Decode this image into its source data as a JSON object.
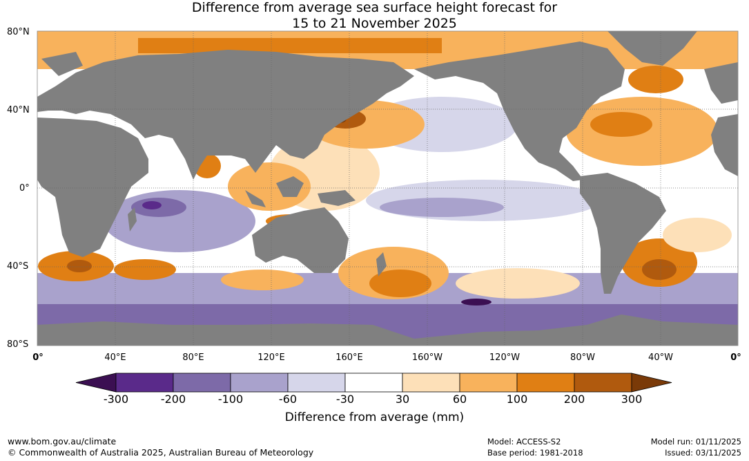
{
  "title_line1": "Difference from average sea surface height forecast for",
  "title_line2": "15 to 21 November 2025",
  "lat_labels": [
    "80°N",
    "40°N",
    "0°",
    "40°S",
    "80°S"
  ],
  "lon_labels": [
    "0°",
    "40°E",
    "80°E",
    "120°E",
    "160°E",
    "160°W",
    "120°W",
    "80°W",
    "40°W",
    "0°"
  ],
  "colorbar": {
    "title": "Difference from average (mm)",
    "ticks": [
      "-300",
      "-200",
      "-100",
      "-60",
      "-30",
      "30",
      "60",
      "100",
      "200",
      "300"
    ],
    "colors": [
      "#3b0f52",
      "#5a2a8a",
      "#7d6aa8",
      "#a9a2cc",
      "#d6d6ea",
      "#ffffff",
      "#fde0b8",
      "#f8b25c",
      "#e07f14",
      "#b05a0e",
      "#7a3a08"
    ]
  },
  "footer": {
    "website": "www.bom.gov.au/climate",
    "copyright": "© Commonwealth of Australia 2025, Australian Bureau of Meteorology",
    "model": "Model: ACCESS-S2",
    "base_period": "Base period: 1981-2018",
    "model_run": "Model run: 01/11/2025",
    "issued": "Issued: 03/11/2025"
  },
  "colors": {
    "land": "#808080",
    "grid": "#666666"
  }
}
